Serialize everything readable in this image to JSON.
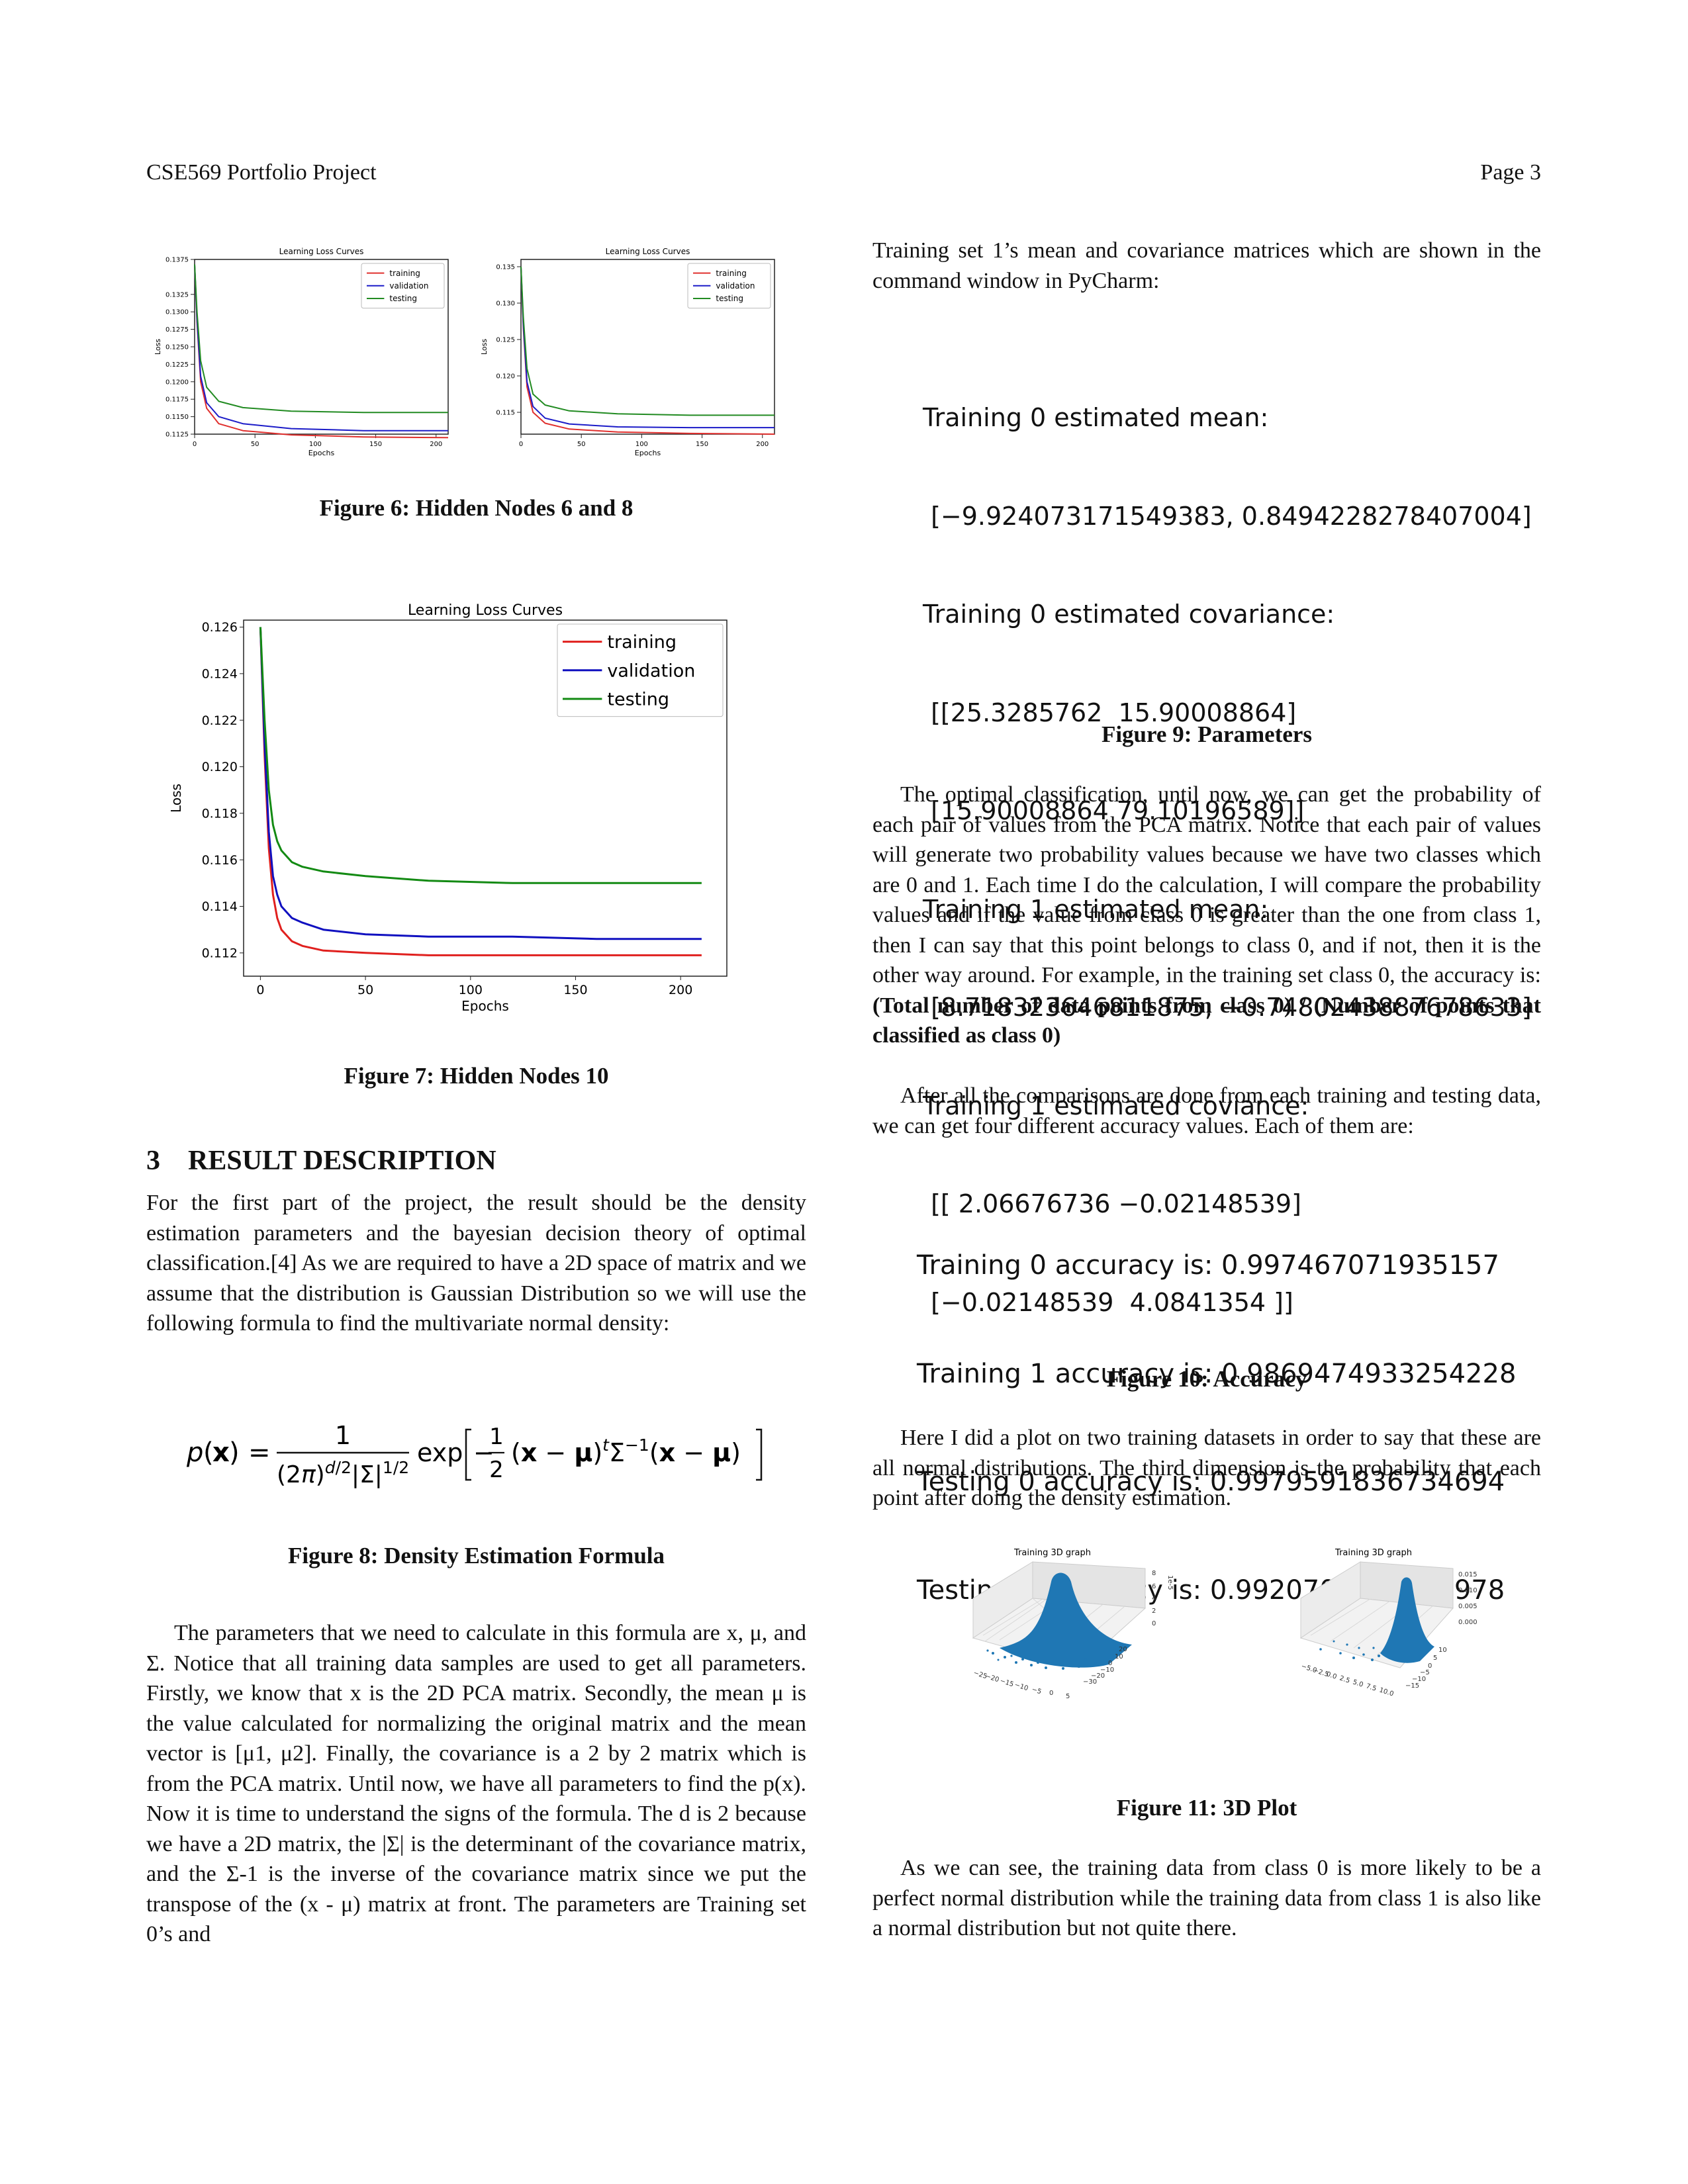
{
  "header": {
    "left": "CSE569 Portfolio Project",
    "right": "Page 3"
  },
  "fig6": {
    "caption": "Figure 6: Hidden Nodes 6 and 8",
    "chart_title": "Learning Loss Curves",
    "xlabel": "Epochs",
    "ylabel": "Loss",
    "legend": [
      "training",
      "validation",
      "testing"
    ]
  },
  "fig7": {
    "caption": "Figure 7: Hidden Nodes 10"
  },
  "fig8": {
    "caption": "Figure 8: Density Estimation Formula"
  },
  "fig9": {
    "caption": "Figure 9: Parameters",
    "lines": [
      "Training 0 estimated mean:",
      " [−9.924073171549383, 0.8494228278407004]",
      "Training 0 estimated covariance:",
      " [[25.3285762  15.90008864]",
      " [15.90008864 79.10196589]]",
      "Training 1 estimated mean:",
      " [8.718323646811875, −0.7480243887678633]",
      "Training 1 estimated coviance:",
      " [[ 2.06676736 −0.02148539]",
      " [−0.02148539  4.0841354 ]]"
    ]
  },
  "fig10": {
    "caption": "Figure 10: Accuracy",
    "lines": [
      "Training 0 accuracy is: 0.997467071935157",
      "Training 1 accuracy is: 0.9869474933254228",
      "Testing 0 accuracy is: 0.9979591836734694",
      "Testing 1 accuracy is: 0.9920704845814978"
    ]
  },
  "fig11": {
    "caption": "Figure 11: 3D Plot",
    "panel_title": "Training 3D graph",
    "left_ticks_z": [
      "8",
      "6",
      "4",
      "2",
      "0"
    ],
    "left_scale": "1e-5",
    "right_ticks_z": [
      "0.015",
      "0.010",
      "0.005",
      "0.000"
    ]
  },
  "section3": {
    "number": "3",
    "title": "RESULT DESCRIPTION"
  },
  "text": {
    "left_p1": "For the first part of the project, the result should be the density estimation parameters and the bayesian decision theory of optimal classification.[4] As we are required to have a 2D space of matrix and we assume that the distribution is Gaussian Distribution so we will use the following formula to find the multivariate normal density:",
    "left_p2": "The parameters that we need to calculate in this formula are x, μ, and Σ. Notice that all training data samples are used to get all parameters. Firstly, we know that x is the 2D PCA matrix. Secondly, the mean μ is the value calculated for normalizing the original matrix and the mean vector is [μ1, μ2]. Finally, the covariance is a 2 by 2 matrix which is from the PCA matrix. Until now, we have all parameters to find the p(x). Now it is time to understand the signs of the formula. The d is 2 because we have a 2D matrix, the |Σ| is the determinant of the covariance matrix, and the Σ-1 is the inverse of the covariance matrix since we put the transpose of the (x - μ) matrix at front. The parameters are Training set 0’s and",
    "right_p1": "Training set 1’s mean and covariance matrices which are shown in the command window in PyCharm:",
    "right_p2_a": "The optimal classification, until now, we can get the probability of each pair of values from the PCA matrix. Notice that each pair of values will generate two probability values because we have two classes which are 0 and 1. Each time I do the calculation, I will compare the probability values and if the value from class 0 is greater than the one from class 1, then I can say that this point belongs to class 0, and if not, then it is the other way around. For example, in the training set class 0, the accuracy is: ",
    "right_p2_bold": "(Total number of data points from class 0) / (Number of points that classified as class 0)",
    "right_p3": "After all the comparisons are done from each training and testing data, we can get four different accuracy values. Each of them are:",
    "right_p4": "Here I did a plot on two training datasets in order to say that these are all normal distributions. The third dimension is the probability that each point after doing the density estimation.",
    "right_p5": "As we can see, the training data from class 0 is more likely to be a perfect normal distribution while the training data from class 1 is also like a normal distribution but not quite there."
  },
  "chart_data": [
    {
      "type": "line",
      "title": "Learning Loss Curves",
      "xlabel": "Epochs",
      "ylabel": "Loss",
      "xlim": [
        0,
        210
      ],
      "ylim": [
        0.1125,
        0.1375
      ],
      "xticks": [
        0,
        50,
        100,
        150,
        200
      ],
      "yticks": [
        0.1125,
        0.115,
        0.1175,
        0.12,
        0.1225,
        0.125,
        0.1275,
        0.13,
        0.1325,
        0.1375
      ],
      "ytick_labels": [
        "0.1125",
        "0.1150",
        "0.1175",
        "0.1200",
        "0.1225",
        "0.1250",
        "0.1275",
        "0.1300",
        "0.1325",
        "0.1375"
      ],
      "legend": "top-right",
      "series": [
        {
          "name": "training",
          "color": "#e0302e",
          "x": [
            0,
            2,
            5,
            10,
            20,
            40,
            80,
            140,
            210
          ],
          "values": [
            0.1368,
            0.1285,
            0.12,
            0.1162,
            0.114,
            0.113,
            0.1124,
            0.1121,
            0.112
          ]
        },
        {
          "name": "validation",
          "color": "#1c1cc8",
          "x": [
            0,
            2,
            5,
            10,
            20,
            40,
            80,
            140,
            210
          ],
          "values": [
            0.1368,
            0.129,
            0.1208,
            0.117,
            0.115,
            0.114,
            0.1133,
            0.113,
            0.113
          ]
        },
        {
          "name": "testing",
          "color": "#228b22",
          "x": [
            0,
            2,
            5,
            10,
            20,
            40,
            80,
            140,
            210
          ],
          "values": [
            0.1368,
            0.13,
            0.123,
            0.1192,
            0.1172,
            0.1163,
            0.1158,
            0.1156,
            0.1156
          ]
        }
      ]
    },
    {
      "type": "line",
      "title": "Learning Loss Curves",
      "xlabel": "Epochs",
      "ylabel": "Loss",
      "xlim": [
        0,
        210
      ],
      "ylim": [
        0.112,
        0.136
      ],
      "xticks": [
        0,
        50,
        100,
        150,
        200
      ],
      "yticks": [
        0.115,
        0.12,
        0.125,
        0.13,
        0.135
      ],
      "ytick_labels": [
        "0.115",
        "0.120",
        "0.125",
        "0.130",
        "0.135"
      ],
      "legend": "top-right",
      "series": [
        {
          "name": "training",
          "color": "#e0302e",
          "x": [
            0,
            2,
            5,
            10,
            20,
            40,
            80,
            140,
            210
          ],
          "values": [
            0.135,
            0.1265,
            0.1185,
            0.115,
            0.1135,
            0.1127,
            0.1123,
            0.1121,
            0.112
          ]
        },
        {
          "name": "validation",
          "color": "#1c1cc8",
          "x": [
            0,
            2,
            5,
            10,
            20,
            40,
            80,
            140,
            210
          ],
          "values": [
            0.135,
            0.127,
            0.1192,
            0.1158,
            0.1142,
            0.1134,
            0.113,
            0.1129,
            0.1129
          ]
        },
        {
          "name": "testing",
          "color": "#228b22",
          "x": [
            0,
            2,
            5,
            10,
            20,
            40,
            80,
            140,
            210
          ],
          "values": [
            0.135,
            0.128,
            0.121,
            0.1175,
            0.116,
            0.1152,
            0.1148,
            0.1146,
            0.1146
          ]
        }
      ]
    },
    {
      "type": "line",
      "title": "Learning Loss Curves",
      "xlabel": "Epochs",
      "ylabel": "Loss",
      "xlim": [
        -8,
        222
      ],
      "ylim": [
        0.111,
        0.1263
      ],
      "xticks": [
        0,
        50,
        100,
        150,
        200
      ],
      "yticks": [
        0.112,
        0.114,
        0.116,
        0.118,
        0.12,
        0.122,
        0.124,
        0.126
      ],
      "ytick_labels": [
        "0.112",
        "0.114",
        "0.116",
        "0.118",
        "0.120",
        "0.122",
        "0.124",
        "0.126"
      ],
      "legend": "top-right",
      "series": [
        {
          "name": "training",
          "color": "#e0201e",
          "x": [
            0,
            2,
            4,
            6,
            8,
            10,
            15,
            20,
            30,
            50,
            80,
            120,
            160,
            210
          ],
          "values": [
            0.126,
            0.1205,
            0.1165,
            0.1145,
            0.1135,
            0.113,
            0.1125,
            0.1123,
            0.1121,
            0.112,
            0.1119,
            0.1119,
            0.1119,
            0.1119
          ]
        },
        {
          "name": "validation",
          "color": "#1010c0",
          "x": [
            0,
            2,
            4,
            6,
            8,
            10,
            15,
            20,
            30,
            50,
            80,
            120,
            160,
            210
          ],
          "values": [
            0.126,
            0.121,
            0.1172,
            0.1153,
            0.1145,
            0.114,
            0.1135,
            0.1133,
            0.113,
            0.1128,
            0.1127,
            0.1127,
            0.1126,
            0.1126
          ]
        },
        {
          "name": "testing",
          "color": "#138a13",
          "x": [
            0,
            2,
            4,
            6,
            8,
            10,
            15,
            20,
            30,
            50,
            80,
            120,
            160,
            210
          ],
          "values": [
            0.126,
            0.122,
            0.119,
            0.1175,
            0.1168,
            0.1164,
            0.1159,
            0.1157,
            0.1155,
            0.1153,
            0.1151,
            0.115,
            0.115,
            0.115
          ]
        }
      ]
    }
  ]
}
